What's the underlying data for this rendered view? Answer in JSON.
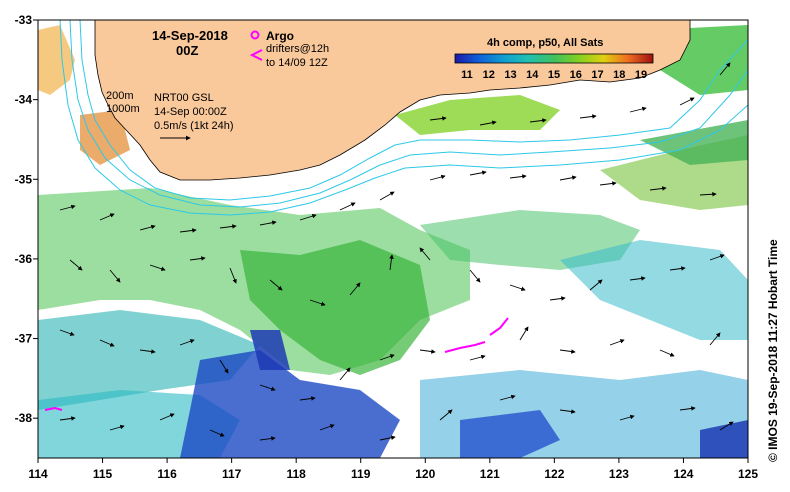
{
  "title": {
    "date": "14-Sep-2018",
    "time": "00Z"
  },
  "legend": {
    "argo_label": "Argo",
    "drifters_line1": "drifters@12h",
    "drifters_line2": "to 14/09 12Z",
    "argo_color": "#ff00ff",
    "drifter_color": "#ff00ff"
  },
  "contours": {
    "label_200": "200m",
    "label_1000": "1000m",
    "color": "#2ec8e8"
  },
  "product": {
    "line1": "NRT00 GSL",
    "line2": "14-Sep 00:00Z",
    "line3": "0.5m/s (1kt 24h)"
  },
  "colorbar": {
    "title": "4h comp, p50, All Sats",
    "ticks": [
      "11",
      "12",
      "13",
      "14",
      "15",
      "16",
      "17",
      "18",
      "19"
    ],
    "colors": [
      "#1a1aa8",
      "#1050d8",
      "#1090d8",
      "#20c0c0",
      "#30c080",
      "#50c040",
      "#90d020",
      "#e0d010",
      "#f09020",
      "#e04010",
      "#a01010"
    ]
  },
  "axes": {
    "x_ticks": [
      "114",
      "115",
      "116",
      "117",
      "118",
      "119",
      "120",
      "121",
      "122",
      "123",
      "124",
      "125"
    ],
    "y_ticks": [
      "-33",
      "-34",
      "-35",
      "-36",
      "-37",
      "-38"
    ],
    "x_range": [
      114,
      125
    ],
    "y_range": [
      -38.5,
      -33
    ]
  },
  "credit": "© IMOS 19-Sep-2018 11:27 Hobart Time",
  "land_color": "#f9c89b"
}
